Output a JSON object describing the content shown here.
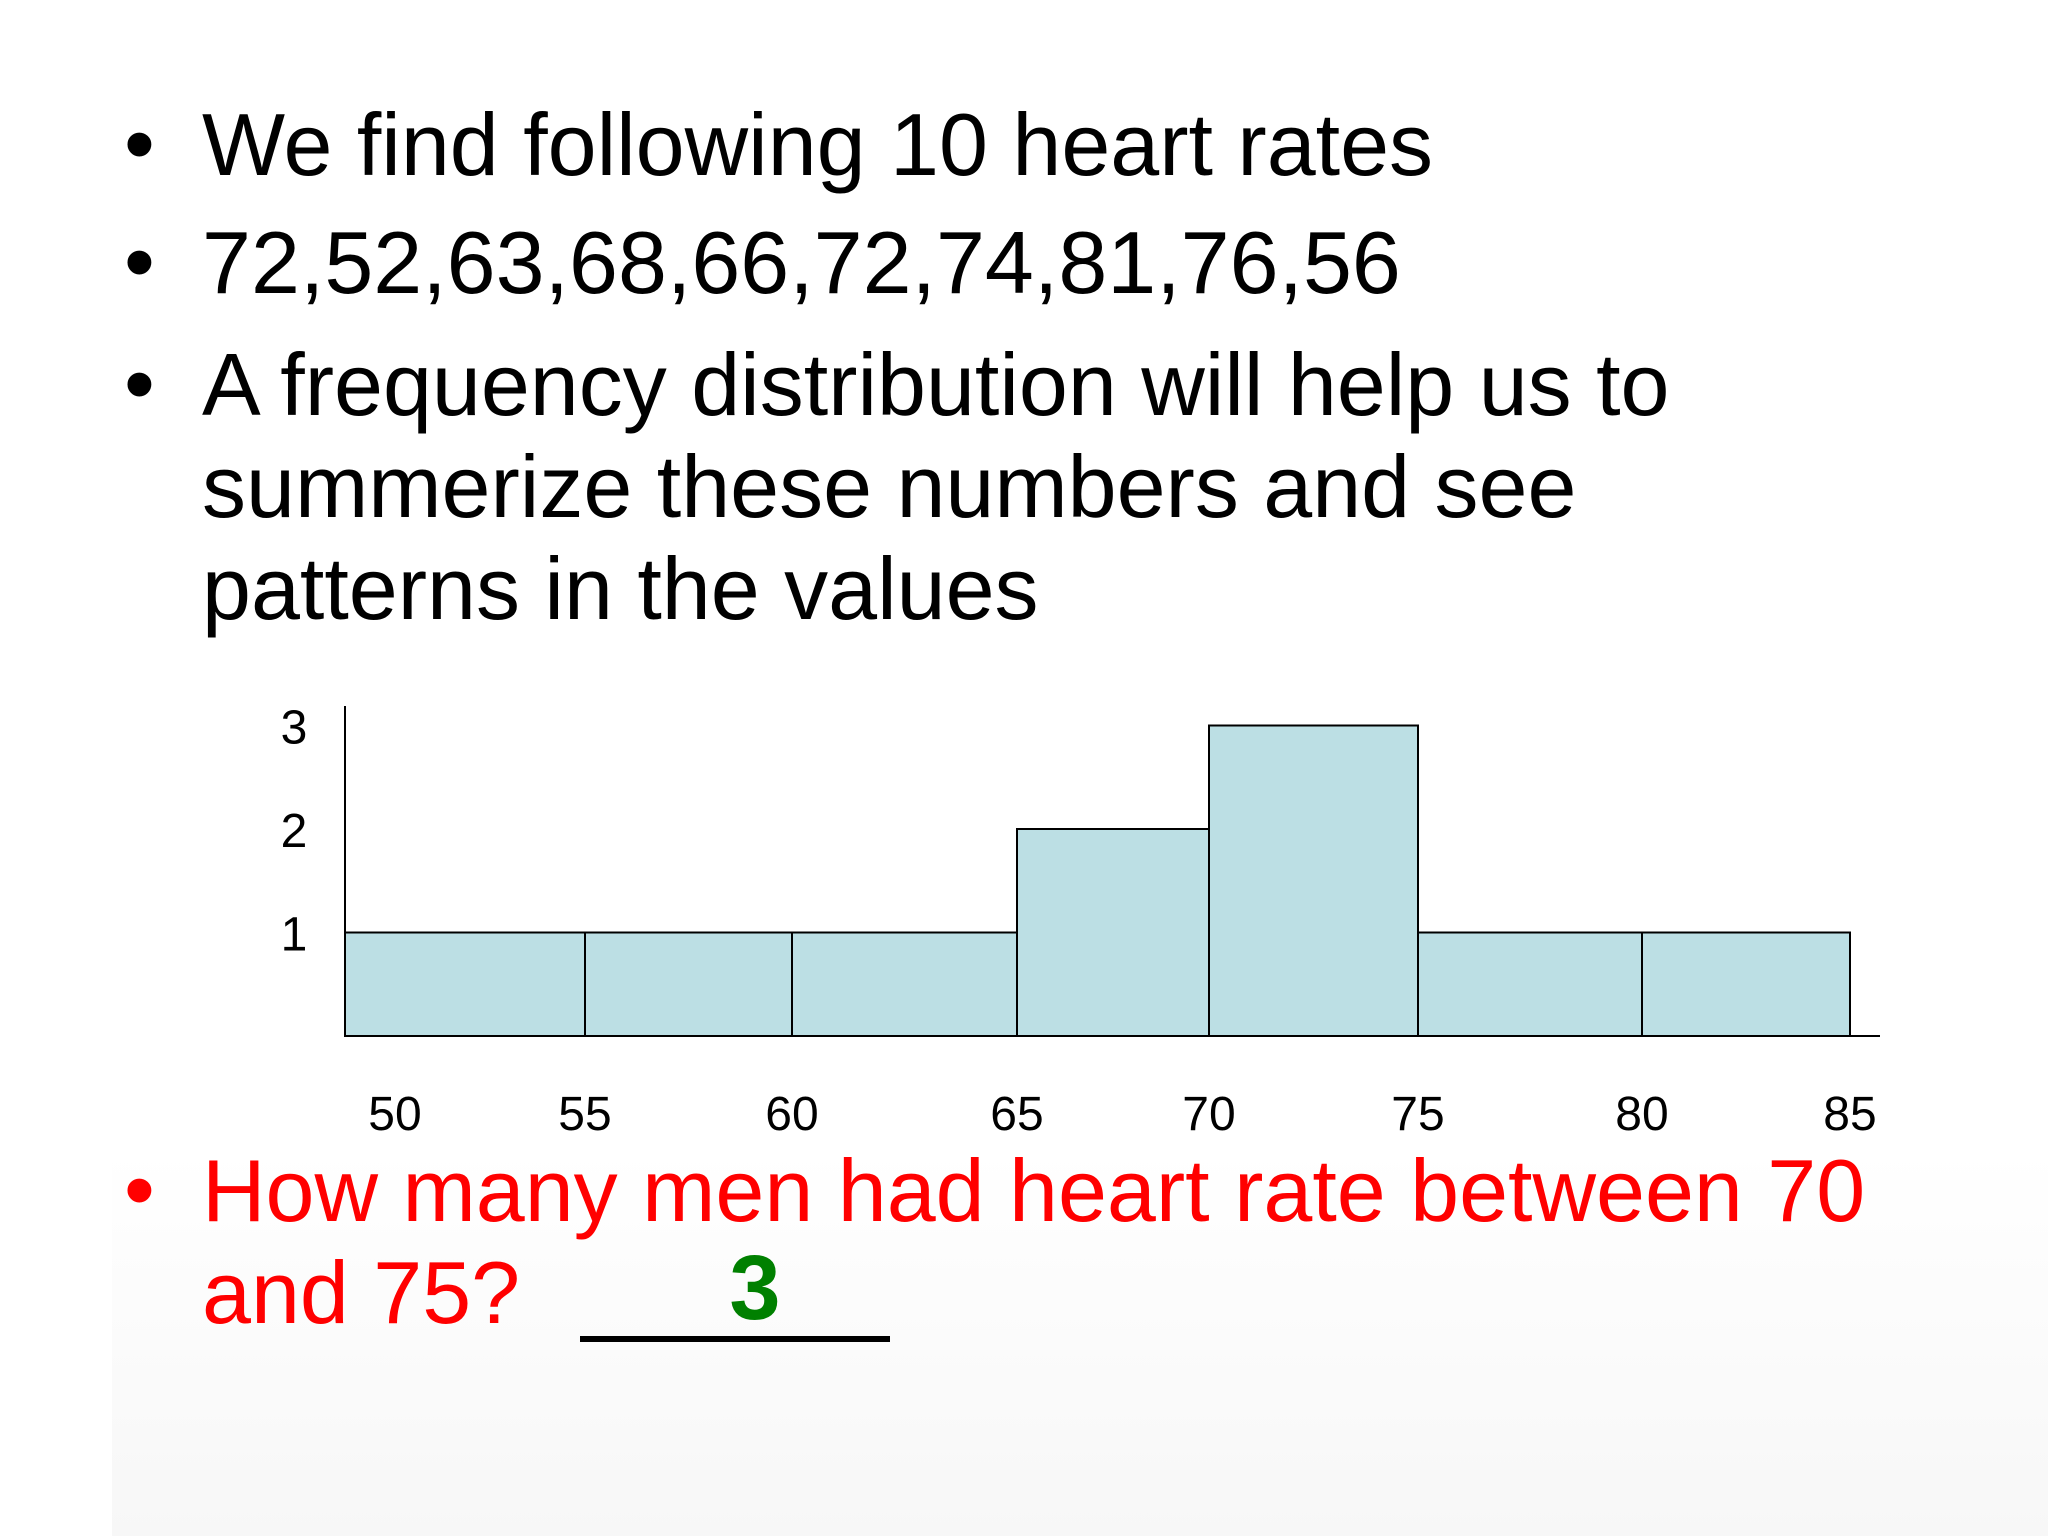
{
  "slide": {
    "bullets": [
      {
        "lines": [
          "We find following 10 heart rates"
        ]
      },
      {
        "lines": [
          "72,52,63,68,66,72,74,81,76,56"
        ]
      },
      {
        "lines": [
          "A frequency distribution will help us to",
          "summerize these numbers and see",
          "patterns in the values"
        ]
      }
    ],
    "question": {
      "lines": [
        "How many men had heart rate between 70",
        "and 75?"
      ],
      "answer": "3"
    }
  },
  "colors": {
    "text": "#000000",
    "question": "#ff0000",
    "answer": "#008000",
    "bar_fill": "#bcdfe4",
    "bar_stroke": "#000000"
  },
  "chart_data": {
    "type": "bar",
    "bins": [
      {
        "from": 50,
        "to": 55,
        "count": 1
      },
      {
        "from": 55,
        "to": 60,
        "count": 1
      },
      {
        "from": 60,
        "to": 65,
        "count": 1
      },
      {
        "from": 65,
        "to": 70,
        "count": 2
      },
      {
        "from": 70,
        "to": 75,
        "count": 3
      },
      {
        "from": 75,
        "to": 80,
        "count": 1
      },
      {
        "from": 80,
        "to": 85,
        "count": 1
      }
    ],
    "x_ticks": [
      "50",
      "55",
      "60",
      "65",
      "70",
      "75",
      "80",
      "85"
    ],
    "y_ticks": [
      "1",
      "2",
      "3"
    ],
    "xlim": [
      50,
      85
    ],
    "ylim": [
      0,
      3
    ],
    "grid": false
  }
}
